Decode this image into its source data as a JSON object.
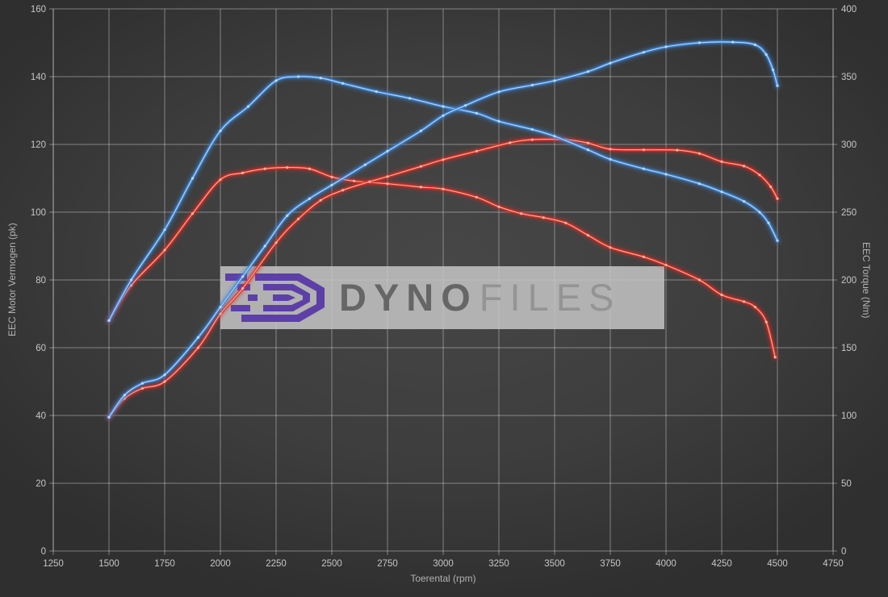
{
  "chart_data": {
    "type": "line",
    "title": "",
    "xlabel": "Toerental (rpm)",
    "ylabel_left": "EEC Motor Vermogen (pk)",
    "ylabel_right": "EEC Torque (Nm)",
    "x_range": [
      1250,
      4750
    ],
    "x_step": 250,
    "y_left_range": [
      0,
      160
    ],
    "y_left_step": 20,
    "y_right_range": [
      0,
      400
    ],
    "y_right_step": 50,
    "grid": true,
    "legend_position": "none",
    "x_tick_labels": [
      "1250",
      "1500",
      "1750",
      "2000",
      "2250",
      "2500",
      "2750",
      "3000",
      "3250",
      "3500",
      "3750",
      "4000",
      "4250",
      "4500",
      "4750"
    ],
    "y_left_tick_labels": [
      "0",
      "20",
      "40",
      "60",
      "80",
      "100",
      "120",
      "140",
      "160"
    ],
    "y_right_tick_labels": [
      "0",
      "50",
      "100",
      "150",
      "200",
      "250",
      "300",
      "350",
      "400"
    ],
    "series": [
      {
        "name": "stock_torque",
        "axis": "right",
        "unit": "Nm",
        "color": "#dc2f23",
        "core_color": "#ffbdae",
        "points": [
          [
            1500,
            170
          ],
          [
            1600,
            196
          ],
          [
            1750,
            222
          ],
          [
            1875,
            249
          ],
          [
            2000,
            274
          ],
          [
            2100,
            279
          ],
          [
            2200,
            282
          ],
          [
            2300,
            283
          ],
          [
            2400,
            282
          ],
          [
            2500,
            276
          ],
          [
            2600,
            273
          ],
          [
            2750,
            271
          ],
          [
            2900,
            268.5
          ],
          [
            3000,
            267
          ],
          [
            3150,
            261
          ],
          [
            3250,
            254
          ],
          [
            3350,
            249
          ],
          [
            3450,
            246
          ],
          [
            3550,
            242
          ],
          [
            3650,
            233
          ],
          [
            3750,
            224
          ],
          [
            3900,
            217
          ],
          [
            4000,
            211
          ],
          [
            4150,
            200
          ],
          [
            4250,
            189
          ],
          [
            4350,
            184
          ],
          [
            4400,
            180
          ],
          [
            4450,
            169
          ],
          [
            4490,
            143
          ]
        ]
      },
      {
        "name": "stock_power",
        "axis": "left",
        "unit": "pk",
        "color": "#dc2f23",
        "core_color": "#ffbdae",
        "points": [
          [
            1500,
            39.5
          ],
          [
            1570,
            45
          ],
          [
            1650,
            48
          ],
          [
            1750,
            50
          ],
          [
            1900,
            60
          ],
          [
            2000,
            70
          ],
          [
            2100,
            77.5
          ],
          [
            2250,
            91
          ],
          [
            2350,
            98
          ],
          [
            2450,
            103.5
          ],
          [
            2550,
            106.5
          ],
          [
            2670,
            109
          ],
          [
            2750,
            110.5
          ],
          [
            2900,
            113.5
          ],
          [
            3000,
            115.5
          ],
          [
            3150,
            118
          ],
          [
            3300,
            120.5
          ],
          [
            3400,
            121.4
          ],
          [
            3550,
            121.4
          ],
          [
            3650,
            120.4
          ],
          [
            3750,
            118.6
          ],
          [
            3900,
            118.4
          ],
          [
            4050,
            118.3
          ],
          [
            4150,
            117.3
          ],
          [
            4250,
            114.9
          ],
          [
            4350,
            113.6
          ],
          [
            4420,
            111
          ],
          [
            4470,
            107.5
          ],
          [
            4500,
            104
          ]
        ]
      },
      {
        "name": "tuned_torque",
        "axis": "right",
        "unit": "Nm",
        "color": "#3f87d9",
        "core_color": "#bfe0ff",
        "points": [
          [
            1500,
            170
          ],
          [
            1600,
            200
          ],
          [
            1750,
            237
          ],
          [
            1875,
            275
          ],
          [
            2000,
            310
          ],
          [
            2125,
            328
          ],
          [
            2250,
            347
          ],
          [
            2350,
            350
          ],
          [
            2450,
            349
          ],
          [
            2550,
            345
          ],
          [
            2700,
            339
          ],
          [
            2850,
            334
          ],
          [
            3000,
            328
          ],
          [
            3150,
            323
          ],
          [
            3250,
            317
          ],
          [
            3400,
            311
          ],
          [
            3500,
            306
          ],
          [
            3650,
            296
          ],
          [
            3750,
            289
          ],
          [
            3900,
            282
          ],
          [
            4000,
            278
          ],
          [
            4150,
            271
          ],
          [
            4250,
            265
          ],
          [
            4350,
            258
          ],
          [
            4420,
            250
          ],
          [
            4460,
            242
          ],
          [
            4500,
            229
          ]
        ]
      },
      {
        "name": "tuned_power",
        "axis": "left",
        "unit": "pk",
        "color": "#3f87d9",
        "core_color": "#bfe0ff",
        "points": [
          [
            1500,
            39.5
          ],
          [
            1570,
            46
          ],
          [
            1650,
            49.5
          ],
          [
            1750,
            52
          ],
          [
            1900,
            63
          ],
          [
            2000,
            72
          ],
          [
            2100,
            81
          ],
          [
            2200,
            90
          ],
          [
            2300,
            99
          ],
          [
            2400,
            104
          ],
          [
            2500,
            108
          ],
          [
            2650,
            114
          ],
          [
            2750,
            118
          ],
          [
            2900,
            124
          ],
          [
            3000,
            128.5
          ],
          [
            3100,
            131.5
          ],
          [
            3250,
            135.5
          ],
          [
            3400,
            137.5
          ],
          [
            3500,
            138.8
          ],
          [
            3650,
            141.5
          ],
          [
            3750,
            144
          ],
          [
            3900,
            147.2
          ],
          [
            4000,
            148.8
          ],
          [
            4150,
            150
          ],
          [
            4300,
            150.2
          ],
          [
            4400,
            149.4
          ],
          [
            4450,
            146.5
          ],
          [
            4480,
            142
          ],
          [
            4500,
            137.3
          ]
        ]
      }
    ]
  },
  "watermark": {
    "brand_part1": "DYNO",
    "brand_part2": "FILES",
    "logo_color": "#5d3fa8"
  },
  "colors": {
    "background": "#3d3d3d",
    "gridline": "rgba(255,255,255,0.38)",
    "tick_text": "#c6c6c6",
    "axis_title_text": "#b2b2b2",
    "tuned_curve": "#3f87d9",
    "stock_curve": "#dc2f23",
    "watermark_bg": "rgba(197,197,197,0.85)"
  }
}
